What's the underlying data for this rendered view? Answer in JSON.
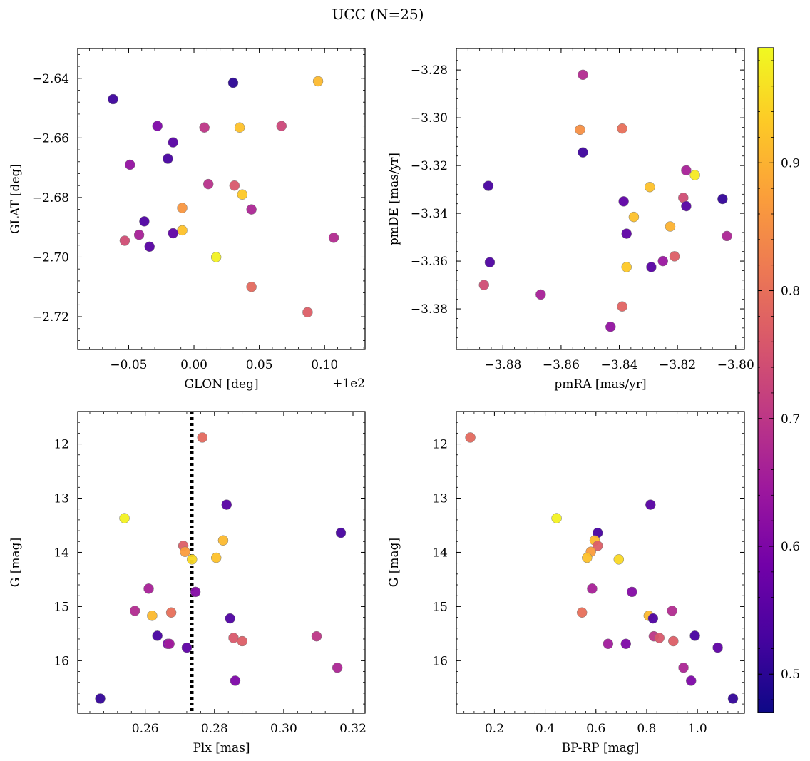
{
  "chart_data": {
    "title": "UCC (N=25)",
    "colorbar": {
      "range": [
        0.47,
        0.99
      ],
      "ticks": [
        0.5,
        0.6,
        0.7,
        0.8,
        0.9
      ],
      "tick_labels": [
        "0.5",
        "0.6",
        "0.7",
        "0.8",
        "0.9"
      ],
      "colormap": [
        "#0d0887",
        "#46039f",
        "#7201a8",
        "#9c179e",
        "#bd3786",
        "#d8576b",
        "#ed7953",
        "#fb9f3a",
        "#fdca26",
        "#f0f921"
      ]
    },
    "panels": [
      {
        "type": "scatter",
        "xlabel": "GLON [deg]",
        "ylabel": "GLAT [deg]",
        "offset_text": "+1e2",
        "xlim": [
          -0.089,
          0.131
        ],
        "ylim": [
          -2.63,
          -2.731
        ],
        "y_inverted": false,
        "xticks": [
          -0.05,
          0.0,
          0.05,
          0.1
        ],
        "xtick_labels": [
          "−0.05",
          "0.00",
          "0.05",
          "0.10"
        ],
        "yticks": [
          -2.64,
          -2.66,
          -2.68,
          -2.7,
          -2.72
        ],
        "ytick_labels": [
          "−2.64",
          "−2.66",
          "−2.68",
          "−2.70",
          "−2.72"
        ],
        "points": [
          {
            "x": -0.062,
            "y": -2.647,
            "c": 0.52
          },
          {
            "x": 0.03,
            "y": -2.6415,
            "c": 0.5
          },
          {
            "x": 0.095,
            "y": -2.641,
            "c": 0.91
          },
          {
            "x": -0.028,
            "y": -2.656,
            "c": 0.6
          },
          {
            "x": 0.008,
            "y": -2.6565,
            "c": 0.7
          },
          {
            "x": 0.035,
            "y": -2.6565,
            "c": 0.92
          },
          {
            "x": 0.067,
            "y": -2.656,
            "c": 0.73
          },
          {
            "x": -0.016,
            "y": -2.6615,
            "c": 0.55
          },
          {
            "x": -0.02,
            "y": -2.667,
            "c": 0.53
          },
          {
            "x": -0.049,
            "y": -2.669,
            "c": 0.63
          },
          {
            "x": 0.011,
            "y": -2.6755,
            "c": 0.69
          },
          {
            "x": 0.031,
            "y": -2.676,
            "c": 0.76
          },
          {
            "x": 0.037,
            "y": -2.679,
            "c": 0.93
          },
          {
            "x": -0.009,
            "y": -2.6835,
            "c": 0.86
          },
          {
            "x": 0.044,
            "y": -2.684,
            "c": 0.67
          },
          {
            "x": -0.038,
            "y": -2.688,
            "c": 0.54
          },
          {
            "x": -0.009,
            "y": -2.691,
            "c": 0.92
          },
          {
            "x": -0.016,
            "y": -2.692,
            "c": 0.56
          },
          {
            "x": -0.042,
            "y": -2.6925,
            "c": 0.66
          },
          {
            "x": -0.053,
            "y": -2.6945,
            "c": 0.74
          },
          {
            "x": 0.107,
            "y": -2.6935,
            "c": 0.68
          },
          {
            "x": -0.034,
            "y": -2.6965,
            "c": 0.55
          },
          {
            "x": 0.017,
            "y": -2.7,
            "c": 0.98
          },
          {
            "x": 0.044,
            "y": -2.71,
            "c": 0.79
          },
          {
            "x": 0.087,
            "y": -2.7185,
            "c": 0.77
          }
        ]
      },
      {
        "type": "scatter",
        "xlabel": "pmRA [mas/yr]",
        "ylabel": "pmDE [mas/yr]",
        "xlim": [
          -3.896,
          -3.797
        ],
        "ylim": [
          -3.271,
          -3.397
        ],
        "y_inverted": false,
        "xticks": [
          -3.88,
          -3.86,
          -3.84,
          -3.82,
          -3.8
        ],
        "xtick_labels": [
          "−3.88",
          "−3.86",
          "−3.84",
          "−3.82",
          "−3.80"
        ],
        "yticks": [
          -3.28,
          -3.3,
          -3.32,
          -3.34,
          -3.36,
          -3.38
        ],
        "ytick_labels": [
          "−3.28",
          "−3.30",
          "−3.32",
          "−3.34",
          "−3.36",
          "−3.38"
        ],
        "points": [
          {
            "x": -3.8525,
            "y": -3.282,
            "c": 0.68
          },
          {
            "x": -3.8535,
            "y": -3.305,
            "c": 0.85
          },
          {
            "x": -3.839,
            "y": -3.3045,
            "c": 0.8
          },
          {
            "x": -3.8525,
            "y": -3.3145,
            "c": 0.52
          },
          {
            "x": -3.885,
            "y": -3.3285,
            "c": 0.53
          },
          {
            "x": -3.817,
            "y": -3.322,
            "c": 0.66
          },
          {
            "x": -3.814,
            "y": -3.324,
            "c": 0.97
          },
          {
            "x": -3.8295,
            "y": -3.329,
            "c": 0.92
          },
          {
            "x": -3.818,
            "y": -3.3335,
            "c": 0.74
          },
          {
            "x": -3.8045,
            "y": -3.334,
            "c": 0.51
          },
          {
            "x": -3.8385,
            "y": -3.335,
            "c": 0.56
          },
          {
            "x": -3.817,
            "y": -3.337,
            "c": 0.55
          },
          {
            "x": -3.835,
            "y": -3.3415,
            "c": 0.92
          },
          {
            "x": -3.8225,
            "y": -3.3455,
            "c": 0.9
          },
          {
            "x": -3.8375,
            "y": -3.3485,
            "c": 0.56
          },
          {
            "x": -3.803,
            "y": -3.3495,
            "c": 0.67
          },
          {
            "x": -3.821,
            "y": -3.358,
            "c": 0.77
          },
          {
            "x": -3.8845,
            "y": -3.3605,
            "c": 0.54
          },
          {
            "x": -3.825,
            "y": -3.36,
            "c": 0.64
          },
          {
            "x": -3.8375,
            "y": -3.3625,
            "c": 0.93
          },
          {
            "x": -3.829,
            "y": -3.3625,
            "c": 0.55
          },
          {
            "x": -3.8865,
            "y": -3.37,
            "c": 0.74
          },
          {
            "x": -3.867,
            "y": -3.374,
            "c": 0.66
          },
          {
            "x": -3.839,
            "y": -3.379,
            "c": 0.78
          },
          {
            "x": -3.843,
            "y": -3.3875,
            "c": 0.63
          }
        ]
      },
      {
        "type": "scatter",
        "xlabel": "Plx [mas]",
        "ylabel": "G [mag]",
        "xlim": [
          0.2405,
          0.3235
        ],
        "ylim": [
          11.4,
          16.97
        ],
        "y_inverted": true,
        "vline": 0.2735,
        "xticks": [
          0.26,
          0.28,
          0.3,
          0.32
        ],
        "xtick_labels": [
          "0.26",
          "0.28",
          "0.30",
          "0.32"
        ],
        "yticks": [
          12,
          13,
          14,
          15,
          16
        ],
        "ytick_labels": [
          "12",
          "13",
          "14",
          "15",
          "16"
        ],
        "points": [
          {
            "x": 0.2765,
            "y": 11.88,
            "c": 0.79
          },
          {
            "x": 0.254,
            "y": 13.37,
            "c": 0.98
          },
          {
            "x": 0.2835,
            "y": 13.12,
            "c": 0.55
          },
          {
            "x": 0.3165,
            "y": 13.64,
            "c": 0.53
          },
          {
            "x": 0.2825,
            "y": 13.78,
            "c": 0.91
          },
          {
            "x": 0.271,
            "y": 13.88,
            "c": 0.77
          },
          {
            "x": 0.2715,
            "y": 13.99,
            "c": 0.87
          },
          {
            "x": 0.2805,
            "y": 14.1,
            "c": 0.92
          },
          {
            "x": 0.2735,
            "y": 14.13,
            "c": 0.95
          },
          {
            "x": 0.261,
            "y": 14.67,
            "c": 0.66
          },
          {
            "x": 0.2745,
            "y": 14.73,
            "c": 0.61
          },
          {
            "x": 0.257,
            "y": 15.08,
            "c": 0.68
          },
          {
            "x": 0.2675,
            "y": 15.11,
            "c": 0.8
          },
          {
            "x": 0.262,
            "y": 15.17,
            "c": 0.91
          },
          {
            "x": 0.2845,
            "y": 15.22,
            "c": 0.54
          },
          {
            "x": 0.2635,
            "y": 15.54,
            "c": 0.53
          },
          {
            "x": 0.3095,
            "y": 15.55,
            "c": 0.7
          },
          {
            "x": 0.2855,
            "y": 15.58,
            "c": 0.76
          },
          {
            "x": 0.288,
            "y": 15.64,
            "c": 0.77
          },
          {
            "x": 0.2665,
            "y": 15.69,
            "c": 0.6
          },
          {
            "x": 0.267,
            "y": 15.69,
            "c": 0.65
          },
          {
            "x": 0.272,
            "y": 15.76,
            "c": 0.56
          },
          {
            "x": 0.3155,
            "y": 16.13,
            "c": 0.67
          },
          {
            "x": 0.286,
            "y": 16.37,
            "c": 0.6
          },
          {
            "x": 0.247,
            "y": 16.7,
            "c": 0.51
          }
        ]
      },
      {
        "type": "scatter",
        "xlabel": "BP-RP [mag]",
        "ylabel": "G [mag]",
        "xlim": [
          0.05,
          1.185
        ],
        "ylim": [
          11.4,
          16.97
        ],
        "y_inverted": true,
        "xticks": [
          0.2,
          0.4,
          0.6,
          0.8,
          1.0
        ],
        "xtick_labels": [
          "0.2",
          "0.4",
          "0.6",
          "0.8",
          "1.0"
        ],
        "yticks": [
          12,
          13,
          14,
          15,
          16
        ],
        "ytick_labels": [
          "12",
          "13",
          "14",
          "15",
          "16"
        ],
        "points": [
          {
            "x": 0.105,
            "y": 11.88,
            "c": 0.79
          },
          {
            "x": 0.445,
            "y": 13.37,
            "c": 0.98
          },
          {
            "x": 0.815,
            "y": 13.12,
            "c": 0.55
          },
          {
            "x": 0.607,
            "y": 13.64,
            "c": 0.53
          },
          {
            "x": 0.595,
            "y": 13.78,
            "c": 0.91
          },
          {
            "x": 0.607,
            "y": 13.88,
            "c": 0.77
          },
          {
            "x": 0.58,
            "y": 13.99,
            "c": 0.87
          },
          {
            "x": 0.565,
            "y": 14.1,
            "c": 0.92
          },
          {
            "x": 0.69,
            "y": 14.13,
            "c": 0.95
          },
          {
            "x": 0.585,
            "y": 14.67,
            "c": 0.66
          },
          {
            "x": 0.742,
            "y": 14.73,
            "c": 0.61
          },
          {
            "x": 0.9,
            "y": 15.08,
            "c": 0.68
          },
          {
            "x": 0.545,
            "y": 15.11,
            "c": 0.8
          },
          {
            "x": 0.808,
            "y": 15.17,
            "c": 0.91
          },
          {
            "x": 0.825,
            "y": 15.22,
            "c": 0.54
          },
          {
            "x": 0.99,
            "y": 15.54,
            "c": 0.53
          },
          {
            "x": 0.828,
            "y": 15.55,
            "c": 0.7
          },
          {
            "x": 0.85,
            "y": 15.58,
            "c": 0.76
          },
          {
            "x": 0.905,
            "y": 15.64,
            "c": 0.77
          },
          {
            "x": 0.718,
            "y": 15.69,
            "c": 0.6
          },
          {
            "x": 0.648,
            "y": 15.69,
            "c": 0.65
          },
          {
            "x": 1.08,
            "y": 15.76,
            "c": 0.56
          },
          {
            "x": 0.945,
            "y": 16.13,
            "c": 0.67
          },
          {
            "x": 0.975,
            "y": 16.37,
            "c": 0.6
          },
          {
            "x": 1.14,
            "y": 16.7,
            "c": 0.51
          }
        ]
      }
    ]
  }
}
